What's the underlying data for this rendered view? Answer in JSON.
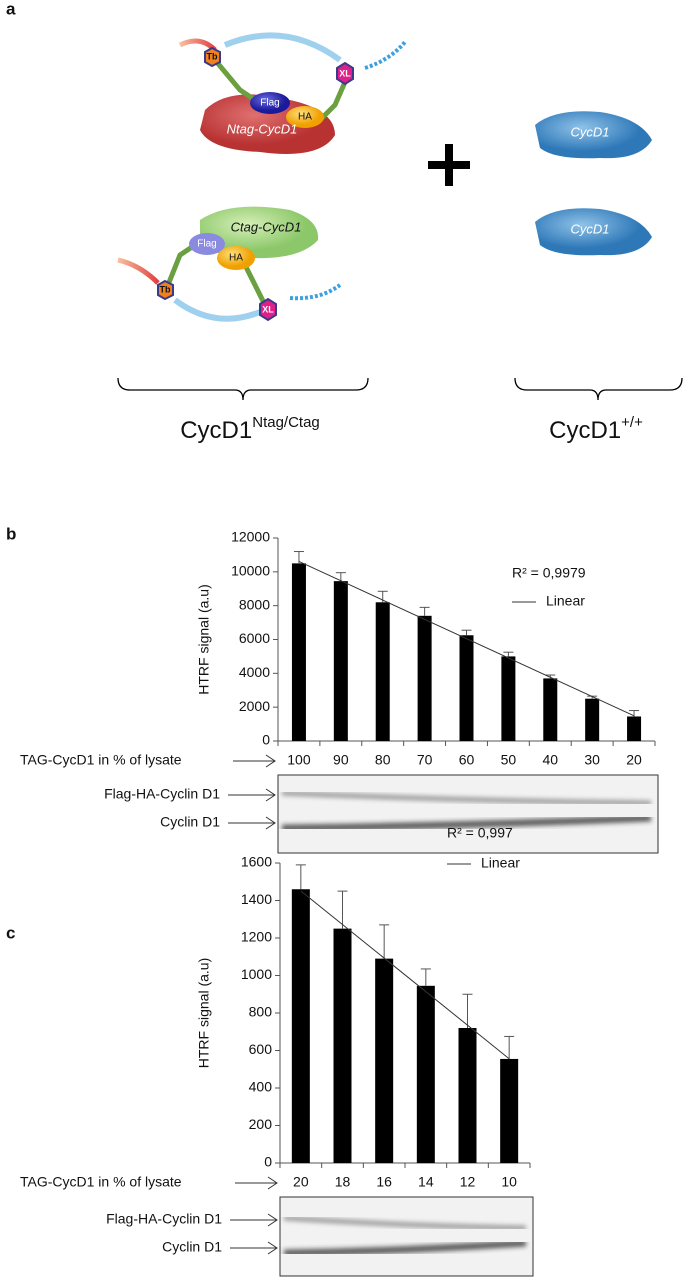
{
  "panel_labels": [
    "a",
    "b",
    "c"
  ],
  "diagram": {
    "top": {
      "donor": "Tb",
      "acceptor": "XL",
      "flag": "Flag",
      "ha": "HA",
      "protein": "Ntag-CycD1"
    },
    "bottom": {
      "donor": "Tb",
      "acceptor": "XL",
      "flag": "Flag",
      "ha": "HA",
      "protein": "Ctag-CycD1"
    },
    "wild_top": "CycD1",
    "wild_bottom": "CycD1",
    "left_label": {
      "main": "CycD1",
      "sup": "Ntag/Ctag"
    },
    "right_label": {
      "main": "CycD1",
      "sup": "+/+"
    }
  },
  "chart_data": [
    {
      "type": "bar",
      "y_label": "HTRF signal (a.u)",
      "x_label": "TAG-CycD1 in % of lysate",
      "categories": [
        "100",
        "90",
        "80",
        "70",
        "60",
        "50",
        "40",
        "30",
        "20"
      ],
      "values": [
        10500,
        9450,
        8200,
        7400,
        6250,
        5000,
        3700,
        2500,
        1450
      ],
      "errors": [
        700,
        500,
        650,
        500,
        300,
        250,
        200,
        150,
        350
      ],
      "color": "#000000",
      "ylim": [
        0,
        12000
      ],
      "yticks": [
        0,
        2000,
        4000,
        6000,
        8000,
        10000,
        12000
      ],
      "annotation": "R² = 0,9979",
      "trendline": "Linear",
      "blot_labels": [
        "Flag-HA-Cyclin D1",
        "Cyclin D1"
      ]
    },
    {
      "type": "bar",
      "y_label": "HTRF signal (a.u)",
      "x_label": "TAG-CycD1 in % of lysate",
      "categories": [
        "20",
        "18",
        "16",
        "14",
        "12",
        "10"
      ],
      "values": [
        1460,
        1250,
        1090,
        945,
        720,
        555
      ],
      "errors": [
        130,
        200,
        180,
        90,
        180,
        120
      ],
      "color": "#000000",
      "ylim": [
        0,
        1600
      ],
      "yticks": [
        0,
        200,
        400,
        600,
        800,
        1000,
        1200,
        1400,
        1600
      ],
      "annotation": "R² = 0,997",
      "trendline": "Linear",
      "blot_labels": [
        "Flag-HA-Cyclin D1",
        "Cyclin D1"
      ]
    }
  ]
}
